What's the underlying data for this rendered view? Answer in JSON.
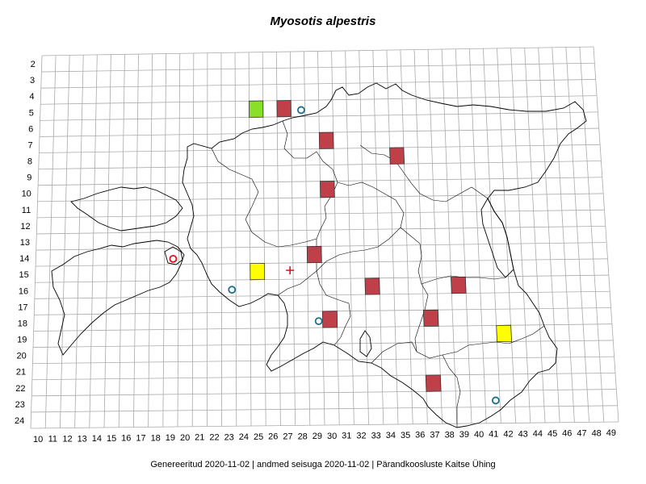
{
  "title": "Myosotis alpestris",
  "footer": "Genereeritud 2020-11-02  |  andmed seisuga 2020-11-02  |  Pärandkoosluste Kaitse Ühing",
  "grid": {
    "col_min": 10,
    "col_max": 49,
    "row_min": 2,
    "row_max": 24
  },
  "colors": {
    "red_cell": "#c0404a",
    "green_cell": "#88e028",
    "yellow_cell": "#ffff00",
    "circle_marker": "#1a6e8e",
    "red_marker": "#e01020",
    "grid_line": "#aaaaaa",
    "border_line": "#000000"
  },
  "records": {
    "red_cells": [
      {
        "col": 27,
        "row": 5
      },
      {
        "col": 30,
        "row": 7
      },
      {
        "col": 35,
        "row": 8
      },
      {
        "col": 30,
        "row": 10
      },
      {
        "col": 29,
        "row": 14
      },
      {
        "col": 33,
        "row": 16
      },
      {
        "col": 39,
        "row": 16
      },
      {
        "col": 30,
        "row": 18
      },
      {
        "col": 37,
        "row": 18
      },
      {
        "col": 37,
        "row": 22
      }
    ],
    "green_cells": [
      {
        "col": 25,
        "row": 5
      }
    ],
    "yellow_cells": [
      {
        "col": 25,
        "row": 15
      },
      {
        "col": 42,
        "row": 19
      }
    ],
    "circles": [
      {
        "col": 28,
        "row": 5
      },
      {
        "col": 23,
        "row": 16
      },
      {
        "col": 29,
        "row": 18
      },
      {
        "col": 41,
        "row": 23
      }
    ],
    "red_circles": [
      {
        "col": 19,
        "row": 14
      }
    ],
    "crosses": [
      {
        "col": 27,
        "row": 15
      }
    ]
  }
}
